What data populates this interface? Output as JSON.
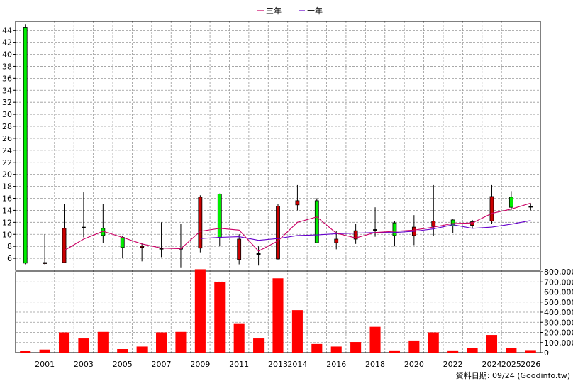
{
  "chart_data": [
    {
      "type": "candlestick",
      "legend": [
        {
          "name": "三年",
          "color": "#cc0066"
        },
        {
          "name": "十年",
          "color": "#6600cc"
        }
      ],
      "ylim": [
        4,
        45.5
      ],
      "yticks": [
        6,
        8,
        10,
        12,
        14,
        16,
        18,
        20,
        22,
        24,
        26,
        28,
        30,
        32,
        34,
        36,
        38,
        40,
        42,
        44
      ],
      "xlabels": [
        "2001",
        "2003",
        "2005",
        "2007",
        "2009",
        "2011",
        "2013",
        "2014",
        "2016",
        "2018",
        "2020",
        "2022",
        "2024",
        "2025",
        "2026"
      ],
      "candles": [
        {
          "open": 5.2,
          "close": 44.5,
          "high": 45.0,
          "low": 5.0
        },
        {
          "open": 5.3,
          "close": 5.2,
          "high": 10.0,
          "low": 5.0
        },
        {
          "open": 11.0,
          "close": 5.3,
          "high": 15.0,
          "low": 5.2
        },
        {
          "open": 11.2,
          "close": 11.2,
          "high": 17.0,
          "low": 9.5
        },
        {
          "open": 9.8,
          "close": 11.0,
          "high": 15.0,
          "low": 8.5
        },
        {
          "open": 7.8,
          "close": 9.5,
          "high": 9.8,
          "low": 6.0
        },
        {
          "open": 8.0,
          "close": 7.9,
          "high": 8.5,
          "low": 5.5
        },
        {
          "open": 7.7,
          "close": 7.7,
          "high": 12.0,
          "low": 6.2
        },
        {
          "open": 7.7,
          "close": 7.7,
          "high": 11.8,
          "low": 4.5
        },
        {
          "open": 16.2,
          "close": 7.7,
          "high": 16.5,
          "low": 7.0
        },
        {
          "open": 9.5,
          "close": 16.7,
          "high": 16.8,
          "low": 8.0
        },
        {
          "open": 9.2,
          "close": 5.8,
          "high": 10.0,
          "low": 5.0
        },
        {
          "open": 6.8,
          "close": 6.8,
          "high": 8.0,
          "low": 4.8
        },
        {
          "open": 14.7,
          "close": 5.9,
          "high": 15.0,
          "low": 5.8
        },
        {
          "open": 15.6,
          "close": 14.9,
          "high": 18.2,
          "low": 14.0
        },
        {
          "open": 8.6,
          "close": 15.6,
          "high": 16.0,
          "low": 8.5
        },
        {
          "open": 9.2,
          "close": 8.6,
          "high": 10.5,
          "low": 7.5
        },
        {
          "open": 10.6,
          "close": 9.2,
          "high": 11.8,
          "low": 8.4
        },
        {
          "open": 10.8,
          "close": 10.8,
          "high": 14.5,
          "low": 9.6
        },
        {
          "open": 9.8,
          "close": 11.9,
          "high": 12.2,
          "low": 8.0
        },
        {
          "open": 11.2,
          "close": 9.8,
          "high": 13.2,
          "low": 8.2
        },
        {
          "open": 12.2,
          "close": 11.3,
          "high": 18.2,
          "low": 9.8
        },
        {
          "open": 11.4,
          "close": 12.4,
          "high": 12.5,
          "low": 10.2
        },
        {
          "open": 12.1,
          "close": 11.5,
          "high": 12.4,
          "low": 11.0
        },
        {
          "open": 16.3,
          "close": 12.2,
          "high": 18.2,
          "low": 11.8
        },
        {
          "open": 14.5,
          "close": 16.2,
          "high": 17.2,
          "low": 14.0
        },
        {
          "open": 14.7,
          "close": 14.7,
          "high": 15.2,
          "low": 14.0
        }
      ],
      "ma3": [
        null,
        null,
        7.3,
        9.2,
        10.5,
        9.5,
        8.4,
        7.7,
        7.6,
        10.5,
        11.0,
        10.7,
        7.2,
        8.9,
        12.0,
        12.9,
        10.2,
        9.4,
        10.3,
        10.5,
        10.7,
        11.2,
        11.8,
        11.9,
        13.5,
        14.2,
        15.2
      ],
      "ma10": [
        null,
        null,
        null,
        null,
        null,
        null,
        null,
        null,
        null,
        9.3,
        9.5,
        9.6,
        9.0,
        9.3,
        9.8,
        9.9,
        10.1,
        10.2,
        10.3,
        10.3,
        10.5,
        10.9,
        11.6,
        11.0,
        11.2,
        11.7,
        12.3
      ]
    },
    {
      "type": "bar",
      "ylim": [
        0,
        800000
      ],
      "ytick_labels": [
        "800,000",
        "700,000",
        "600,000",
        "500,000",
        "400,000",
        "300,000",
        "200,000",
        "100,000",
        "0"
      ],
      "ytick_values": [
        800000,
        700000,
        600000,
        500000,
        400000,
        300000,
        200000,
        100000,
        0
      ],
      "values": [
        18000,
        30000,
        200000,
        140000,
        205000,
        35000,
        60000,
        200000,
        205000,
        825000,
        700000,
        290000,
        140000,
        735000,
        420000,
        85000,
        60000,
        105000,
        255000,
        22000,
        120000,
        200000,
        22000,
        48000,
        175000,
        48000,
        25000
      ],
      "color": "#ff0000"
    }
  ],
  "credit": "資料日期: 09/24 (Goodinfo.tw)"
}
